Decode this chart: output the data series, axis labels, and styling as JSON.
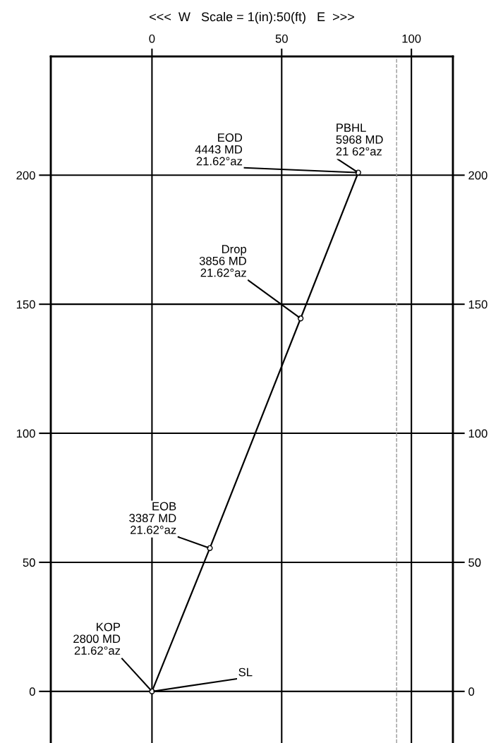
{
  "chart_data": {
    "type": "line",
    "title": "<<<  W   Scale = 1(in):50(ft)   E  >>>",
    "x": [
      0,
      22.3,
      57.3,
      79.5
    ],
    "series": [
      {
        "color": "#000000",
        "values": [
          0,
          55.5,
          144.5,
          201
        ]
      }
    ],
    "marker": "circle",
    "line_style": "solid",
    "xlim": [
      -39,
      116
    ],
    "xticks": [
      0,
      50,
      100
    ],
    "ylim": [
      -20,
      246
    ],
    "yticks": [
      0,
      50,
      100,
      150,
      200
    ],
    "y2lim": [
      -20,
      246
    ],
    "y2ticks": [
      0,
      50,
      100,
      150,
      200
    ],
    "grid": true,
    "ref_lines": [
      {
        "axis": "x",
        "value": 94.3,
        "color": "#999999",
        "line_style": "dashed"
      }
    ],
    "annotations": [
      {
        "text": "KOP\n2800 MD\n21.62°az",
        "x": 0,
        "y": 0
      },
      {
        "text": "SL",
        "x": 0,
        "y": 0
      },
      {
        "text": "EOB\n3387 MD\n21.62°az",
        "x": 22.3,
        "y": 55.5
      },
      {
        "text": "Drop\n3856 MD\n21.62°az",
        "x": 57.3,
        "y": 144.5
      },
      {
        "text": "EOD\n4443 MD\n21.62°az",
        "x": 79.5,
        "y": 201
      },
      {
        "text": "PBHL\n5968 MD\n21 62°az",
        "x": 79.5,
        "y": 201
      }
    ]
  }
}
